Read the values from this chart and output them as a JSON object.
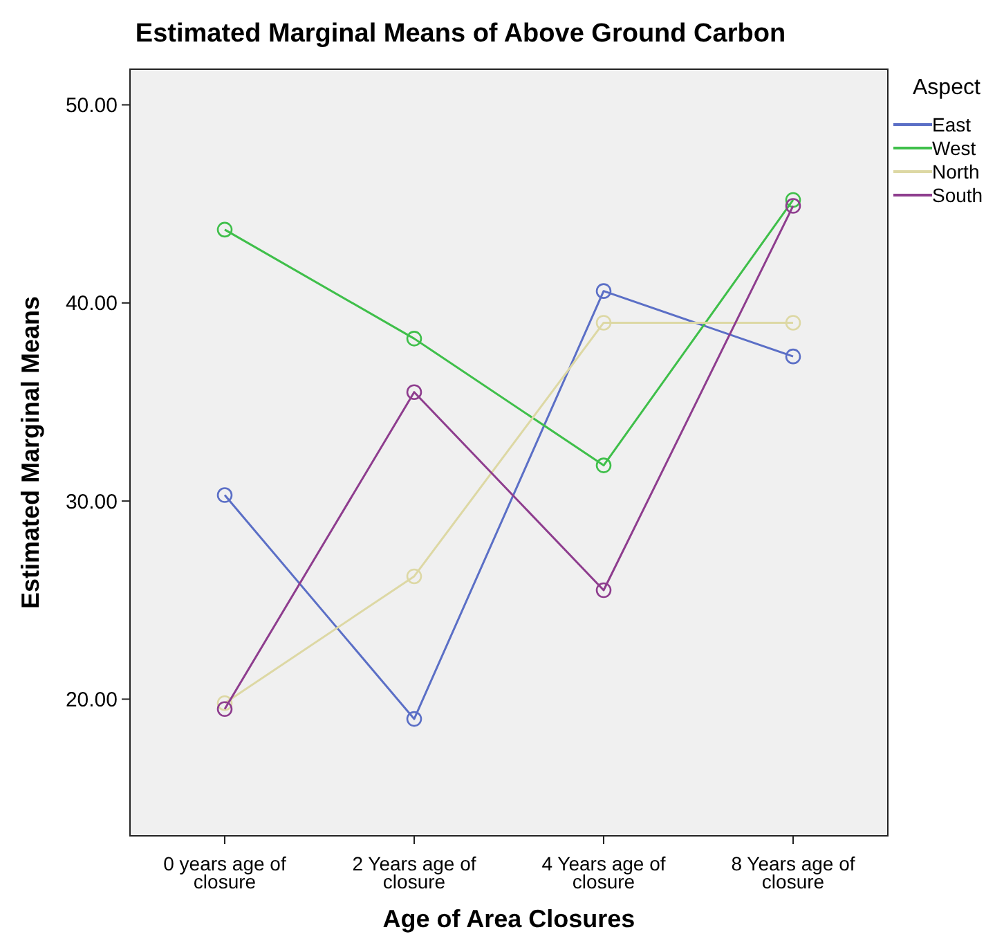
{
  "chart_data": {
    "type": "line",
    "title": "Estimated Marginal Means of Above Ground Carbon",
    "xlabel": "Age of Area Closures",
    "ylabel": "Estimated Marginal Means",
    "legend_title": "Aspect",
    "categories": [
      "0 years age of closure",
      "2 Years age of closure",
      "4 Years age of closure",
      "8 Years age of closure"
    ],
    "series": [
      {
        "name": "East",
        "color": "#5b6fc6",
        "values": [
          30.3,
          19.0,
          40.6,
          37.3
        ]
      },
      {
        "name": "West",
        "color": "#3fbf4a",
        "values": [
          43.7,
          38.2,
          31.8,
          45.2
        ]
      },
      {
        "name": "North",
        "color": "#ddd8a4",
        "values": [
          19.8,
          26.2,
          39.0,
          39.0
        ]
      },
      {
        "name": "South",
        "color": "#8e3d8e",
        "values": [
          19.5,
          35.5,
          25.5,
          44.9
        ]
      }
    ],
    "ylim": [
      13.1,
      51.8
    ],
    "yticks": [
      {
        "value": 20,
        "label": "20.00"
      },
      {
        "value": 30,
        "label": "30.00"
      },
      {
        "value": 40,
        "label": "40.00"
      },
      {
        "value": 50,
        "label": "50.00"
      }
    ],
    "legend": "right",
    "marker": "circle",
    "line_style": "solid"
  }
}
